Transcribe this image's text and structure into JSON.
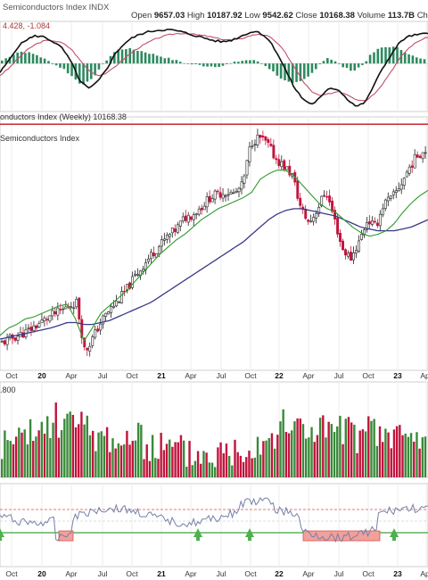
{
  "header": {
    "title": "Semiconductors Index",
    "symbol": "INDX",
    "open_label": "Open",
    "open": "9657.03",
    "high_label": "High",
    "high": "10187.92",
    "low_label": "Low",
    "low": "9542.62",
    "close_label": "Close",
    "close": "10168.38",
    "volume_label": "Volume",
    "volume": "113.7B",
    "change_label": "Chg"
  },
  "macd_label": "4.428, -1.084",
  "price_label": "onductors Index (Weekly) 10168.38",
  "sub_label": "Semiconductors Index",
  "volume_label": ".800",
  "colors": {
    "up": "#3a8a3a",
    "down": "#c0143c",
    "ma_short": "#2e9a2e",
    "ma_long": "#3a3a8a",
    "ref_line": "#c0141c",
    "macd": "#111111",
    "signal": "#c0506a",
    "histogram": "#2e8a60"
  },
  "chart_data": [
    {
      "type": "line",
      "panel": "macd",
      "x_ticks": [
        "Oct",
        "20",
        "Apr",
        "Jul",
        "Oct",
        "21",
        "Apr",
        "Jul",
        "Oct",
        "22",
        "Apr",
        "Jul",
        "Oct",
        "23",
        "Apr"
      ],
      "series": [
        {
          "values": [
            -1.5,
            0.5,
            2.8,
            4.0,
            4.6,
            4.4,
            3.6,
            2.5,
            0.2,
            -3.0,
            -4.2,
            -3.0,
            -0.8,
            1.8,
            3.4,
            4.4,
            5.0,
            5.4,
            5.6,
            5.6,
            5.4,
            5.0,
            4.6,
            4.2,
            3.8,
            3.6,
            3.9,
            4.5,
            5.2,
            5.3,
            4.2,
            2.0,
            -1.0,
            -4.0,
            -6.0,
            -6.8,
            -5.6,
            -4.0,
            -4.4,
            -6.0,
            -7.2,
            -6.4,
            -3.4,
            -0.6,
            1.8,
            3.8,
            4.6,
            4.8,
            5.0
          ]
        },
        {
          "values": [
            -2.0,
            -0.8,
            0.8,
            2.2,
            3.2,
            3.8,
            3.8,
            3.4,
            2.4,
            0.5,
            -1.2,
            -2.0,
            -1.6,
            -0.4,
            0.9,
            2.1,
            3.0,
            3.8,
            4.4,
            4.8,
            5.0,
            5.0,
            4.8,
            4.6,
            4.3,
            4.0,
            3.9,
            4.1,
            4.6,
            4.9,
            4.6,
            3.6,
            1.8,
            -0.6,
            -3.0,
            -4.8,
            -5.4,
            -5.0,
            -4.6,
            -5.2,
            -6.0,
            -6.2,
            -5.0,
            -3.2,
            -1.0,
            1.2,
            2.8,
            3.8,
            4.4
          ]
        },
        {
          "values": [
            0.5,
            1.3,
            2.0,
            1.8,
            1.4,
            0.6,
            -0.2,
            -0.9,
            -2.2,
            -3.5,
            -3.0,
            -1.0,
            0.8,
            2.2,
            2.5,
            2.3,
            2.0,
            1.6,
            1.2,
            0.8,
            0.4,
            0,
            -0.2,
            -0.4,
            -0.5,
            -0.4,
            0,
            0.4,
            0.6,
            0.4,
            -0.4,
            -1.6,
            -2.8,
            -3.4,
            -3.0,
            -2.0,
            -0.2,
            1.0,
            0.2,
            -0.8,
            -1.2,
            -0.2,
            1.6,
            2.6,
            2.8,
            2.6,
            1.8,
            1.0,
            0.6
          ]
        }
      ]
    },
    {
      "type": "candlestick",
      "panel": "price",
      "x_ticks": [
        "Oct",
        "20",
        "Apr",
        "Jul",
        "Oct",
        "21",
        "Apr",
        "Jul",
        "Oct",
        "22",
        "Apr",
        "Jul",
        "Oct",
        "23",
        "Apr"
      ],
      "series": [
        {
          "values": [
            4.95,
            5.05,
            5.15,
            5.25,
            5.4,
            5.55,
            5.7,
            5.8,
            5.95,
            6.05,
            4.7,
            5.1,
            5.55,
            5.85,
            6.1,
            6.4,
            6.75,
            7.05,
            7.35,
            7.6,
            7.85,
            8.05,
            8.35,
            8.45,
            8.65,
            8.9,
            9.0,
            9.05,
            9.0,
            9.25,
            10.4,
            10.55,
            10.35,
            9.95,
            9.75,
            9.5,
            8.6,
            8.2,
            8.6,
            9.1,
            8.35,
            7.5,
            7.25,
            7.7,
            8.3,
            8.1,
            8.75,
            8.9,
            9.25,
            9.7,
            10.05,
            10.2
          ]
        },
        {
          "values": [
            5.15,
            5.35,
            5.45,
            5.6,
            5.65,
            5.75,
            5.85,
            5.95,
            6.0,
            5.6,
            5.0,
            5.35,
            5.75,
            5.95,
            6.15,
            6.35,
            6.6,
            6.85,
            7.1,
            7.35,
            7.55,
            7.75,
            7.9,
            8.1,
            8.3,
            8.45,
            8.6,
            8.7,
            8.8,
            8.9,
            9.05,
            9.4,
            9.55,
            9.65,
            9.65,
            9.5,
            9.25,
            9.0,
            8.75,
            8.6,
            8.5,
            8.3,
            8.1,
            7.95,
            7.85,
            7.9,
            8.0,
            8.2,
            8.5,
            8.75,
            8.95,
            9.1
          ]
        },
        {
          "values": [
            5.05,
            5.1,
            5.15,
            5.2,
            5.25,
            5.3,
            5.35,
            5.42,
            5.5,
            5.5,
            5.45,
            5.45,
            5.5,
            5.55,
            5.65,
            5.75,
            5.85,
            5.95,
            6.05,
            6.2,
            6.35,
            6.5,
            6.65,
            6.8,
            6.95,
            7.1,
            7.25,
            7.4,
            7.55,
            7.7,
            7.9,
            8.1,
            8.3,
            8.45,
            8.55,
            8.6,
            8.6,
            8.55,
            8.5,
            8.45,
            8.4,
            8.3,
            8.2,
            8.1,
            8.05,
            8.0,
            8.0,
            8.0,
            8.05,
            8.1,
            8.2,
            8.3
          ]
        }
      ],
      "reference_line": 10.9
    },
    {
      "type": "bar",
      "panel": "volume",
      "x_ticks": [
        "Oct",
        "20",
        "Apr",
        "Jul",
        "Oct",
        "21",
        "Apr",
        "Jul",
        "Oct",
        "22",
        "Apr",
        "Jul",
        "Oct",
        "23",
        "Apr"
      ]
    },
    {
      "type": "line",
      "panel": "rsi",
      "x_ticks": [
        "Oct",
        "20",
        "Apr",
        "Jul",
        "Oct",
        "21",
        "Apr",
        "Jul",
        "Oct",
        "22",
        "Apr",
        "Jul",
        "Oct",
        "23",
        "Apr"
      ]
    }
  ]
}
